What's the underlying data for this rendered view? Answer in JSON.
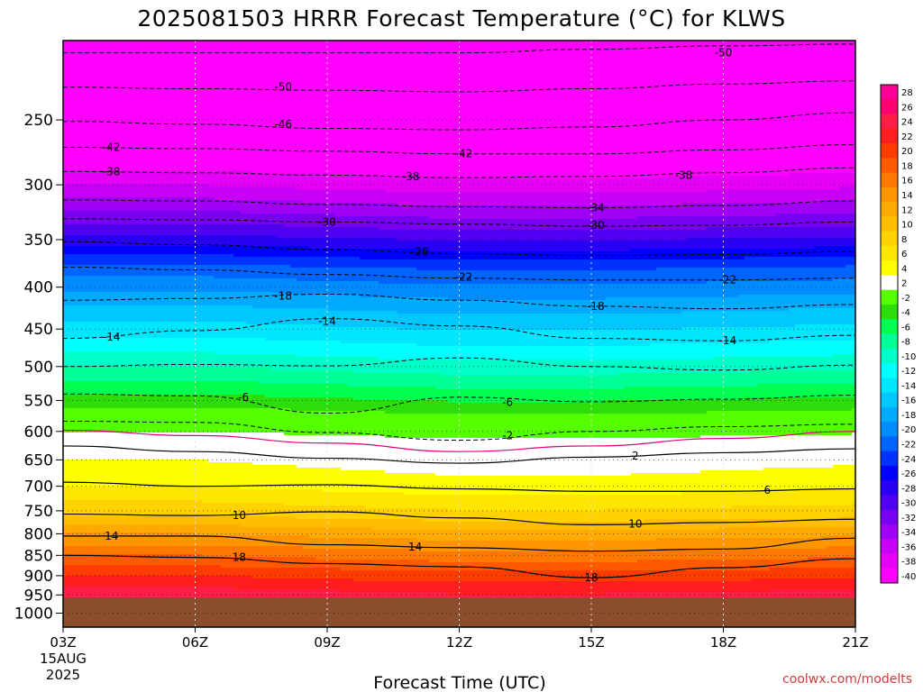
{
  "chart_data": {
    "type": "contour",
    "title": "2025081503 HRRR Forecast Temperature (°C) for KLWS",
    "xlabel": "Forecast Time (UTC)",
    "ylabel": "",
    "credit": "coolwx.com/modelts",
    "x_ticks": [
      "03Z",
      "06Z",
      "09Z",
      "12Z",
      "15Z",
      "18Z",
      "21Z"
    ],
    "x_hours": [
      3,
      6,
      9,
      12,
      15,
      18,
      21
    ],
    "x_start_labels": [
      "15AUG",
      "2025"
    ],
    "y_ticks": [
      250,
      300,
      350,
      400,
      450,
      500,
      550,
      600,
      650,
      700,
      750,
      800,
      850,
      900,
      950,
      1000
    ],
    "ylim": [
      200,
      1040
    ],
    "y_scale": "log-pressure",
    "surface_pressure": 958,
    "ground_color": "#8b4e2c",
    "grid": true,
    "colorbar": {
      "labels": [
        28,
        26,
        24,
        22,
        20,
        18,
        16,
        14,
        12,
        10,
        8,
        6,
        4,
        2,
        -2,
        -4,
        -6,
        -8,
        -10,
        -12,
        -14,
        -16,
        -18,
        -20,
        -22,
        -24,
        -26,
        -28,
        -30,
        -32,
        -34,
        -36,
        -38,
        -40
      ],
      "colors": [
        "#ff0096",
        "#ff0070",
        "#ff1e46",
        "#ff1e1e",
        "#ff3c00",
        "#ff5a00",
        "#ff7800",
        "#ff9600",
        "#ffaa00",
        "#ffbe00",
        "#ffd200",
        "#ffe600",
        "#ffff00",
        "#ffffff",
        "#55ff00",
        "#2ddd0a",
        "#00ff50",
        "#00ff96",
        "#00ffc8",
        "#00ffff",
        "#00e6ff",
        "#00c8ff",
        "#00aaff",
        "#008cff",
        "#0064ff",
        "#0032ff",
        "#0000ff",
        "#2800f5",
        "#5000f0",
        "#7800f0",
        "#a000f5",
        "#c800f5",
        "#e600f5",
        "#ff00ff"
      ]
    },
    "contours": [
      {
        "value": -50,
        "dashed": true,
        "p": [
          207,
          207,
          207,
          207,
          205,
          203,
          202
        ]
      },
      {
        "value": -50,
        "dashed": true,
        "p": [
          228,
          229,
          230,
          231,
          229,
          226,
          224
        ]
      },
      {
        "value": -46,
        "dashed": true,
        "p": [
          251,
          253,
          256,
          257,
          255,
          250,
          245
        ]
      },
      {
        "value": -42,
        "dashed": true,
        "p": [
          270,
          271,
          273,
          275,
          275,
          272,
          268
        ]
      },
      {
        "value": -38,
        "dashed": true,
        "p": [
          289,
          290,
          292,
          294,
          293,
          290,
          286
        ]
      },
      {
        "value": -34,
        "dashed": true,
        "p": [
          313,
          314,
          317,
          319,
          320,
          318,
          314
        ]
      },
      {
        "value": -30,
        "dashed": true,
        "p": [
          330,
          331,
          333,
          335,
          337,
          336,
          333
        ]
      },
      {
        "value": -26,
        "dashed": true,
        "p": [
          352,
          355,
          360,
          364,
          366,
          365,
          362
        ]
      },
      {
        "value": -22,
        "dashed": true,
        "p": [
          378,
          381,
          386,
          390,
          392,
          392,
          390
        ]
      },
      {
        "value": -18,
        "dashed": true,
        "p": [
          415,
          413,
          408,
          415,
          422,
          425,
          420
        ]
      },
      {
        "value": -14,
        "dashed": true,
        "p": [
          462,
          452,
          437,
          446,
          462,
          465,
          458
        ]
      },
      {
        "value": -10,
        "dashed": true,
        "p": [
          500,
          497,
          499,
          488,
          500,
          505,
          498
        ]
      },
      {
        "value": -6,
        "dashed": true,
        "p": [
          540,
          543,
          570,
          545,
          552,
          548,
          542
        ]
      },
      {
        "value": -2,
        "dashed": true,
        "p": [
          583,
          585,
          602,
          615,
          600,
          592,
          588
        ]
      },
      {
        "value": 0,
        "dashed": false,
        "color": "#e0007a",
        "p": [
          598,
          607,
          620,
          635,
          625,
          612,
          600
        ]
      },
      {
        "value": 2,
        "dashed": false,
        "p": [
          625,
          635,
          647,
          656,
          645,
          637,
          630
        ]
      },
      {
        "value": 6,
        "dashed": false,
        "p": [
          692,
          700,
          697,
          705,
          710,
          710,
          705
        ]
      },
      {
        "value": 10,
        "dashed": false,
        "p": [
          757,
          760,
          752,
          765,
          780,
          775,
          768
        ]
      },
      {
        "value": 14,
        "dashed": false,
        "p": [
          805,
          805,
          825,
          832,
          840,
          835,
          810
        ]
      },
      {
        "value": 18,
        "dashed": false,
        "p": [
          850,
          855,
          870,
          878,
          905,
          880,
          858
        ]
      }
    ],
    "contour_labels": [
      {
        "text": "-50",
        "hour": 8.0,
        "p": 228
      },
      {
        "text": "-50",
        "hour": 18.0,
        "p": 207
      },
      {
        "text": "-46",
        "hour": 8.0,
        "p": 253
      },
      {
        "text": "-42",
        "hour": 4.1,
        "p": 270
      },
      {
        "text": "-42",
        "hour": 12.1,
        "p": 275
      },
      {
        "text": "-38",
        "hour": 4.1,
        "p": 289
      },
      {
        "text": "-38",
        "hour": 10.9,
        "p": 293
      },
      {
        "text": "-38",
        "hour": 17.1,
        "p": 292
      },
      {
        "text": "-34",
        "hour": 15.1,
        "p": 320
      },
      {
        "text": "-30",
        "hour": 9.0,
        "p": 333
      },
      {
        "text": "-30",
        "hour": 15.1,
        "p": 336
      },
      {
        "text": "-26",
        "hour": 11.1,
        "p": 362
      },
      {
        "text": "-22",
        "hour": 12.1,
        "p": 389
      },
      {
        "text": "-22",
        "hour": 18.1,
        "p": 392
      },
      {
        "text": "-18",
        "hour": 8.0,
        "p": 410
      },
      {
        "text": "-18",
        "hour": 15.1,
        "p": 422
      },
      {
        "text": "-14",
        "hour": 4.1,
        "p": 460
      },
      {
        "text": "-14",
        "hour": 9.0,
        "p": 440
      },
      {
        "text": "-14",
        "hour": 18.1,
        "p": 465
      },
      {
        "text": "-6",
        "hour": 7.1,
        "p": 545
      },
      {
        "text": "-6",
        "hour": 13.1,
        "p": 553
      },
      {
        "text": "-2",
        "hour": 13.1,
        "p": 607
      },
      {
        "text": "2",
        "hour": 16.0,
        "p": 643
      },
      {
        "text": "6",
        "hour": 19.0,
        "p": 708
      },
      {
        "text": "10",
        "hour": 7.0,
        "p": 760
      },
      {
        "text": "10",
        "hour": 16.0,
        "p": 778
      },
      {
        "text": "14",
        "hour": 4.1,
        "p": 805
      },
      {
        "text": "14",
        "hour": 11.0,
        "p": 830
      },
      {
        "text": "18",
        "hour": 7.0,
        "p": 855
      },
      {
        "text": "18",
        "hour": 15.0,
        "p": 905
      }
    ],
    "color_profile": {
      "p": [
        200,
        250,
        300,
        340,
        380,
        420,
        460,
        500,
        540,
        580,
        600,
        620,
        650,
        700,
        760,
        800,
        850,
        900,
        958
      ],
      "temp": [
        -52,
        -46,
        -38,
        -31,
        -23,
        -18,
        -14,
        -10,
        -6,
        -2,
        0,
        2,
        4,
        6,
        10,
        14,
        18,
        22,
        26
      ]
    },
    "temp_shift_by_hour": [
      {
        "hour": 3,
        "shift": 0
      },
      {
        "hour": 6,
        "shift": 0
      },
      {
        "hour": 9,
        "shift": -0.6
      },
      {
        "hour": 12,
        "shift": -1.2
      },
      {
        "hour": 15,
        "shift": -1.2
      },
      {
        "hour": 18,
        "shift": -0.8
      },
      {
        "hour": 21,
        "shift": -0.4
      }
    ]
  }
}
